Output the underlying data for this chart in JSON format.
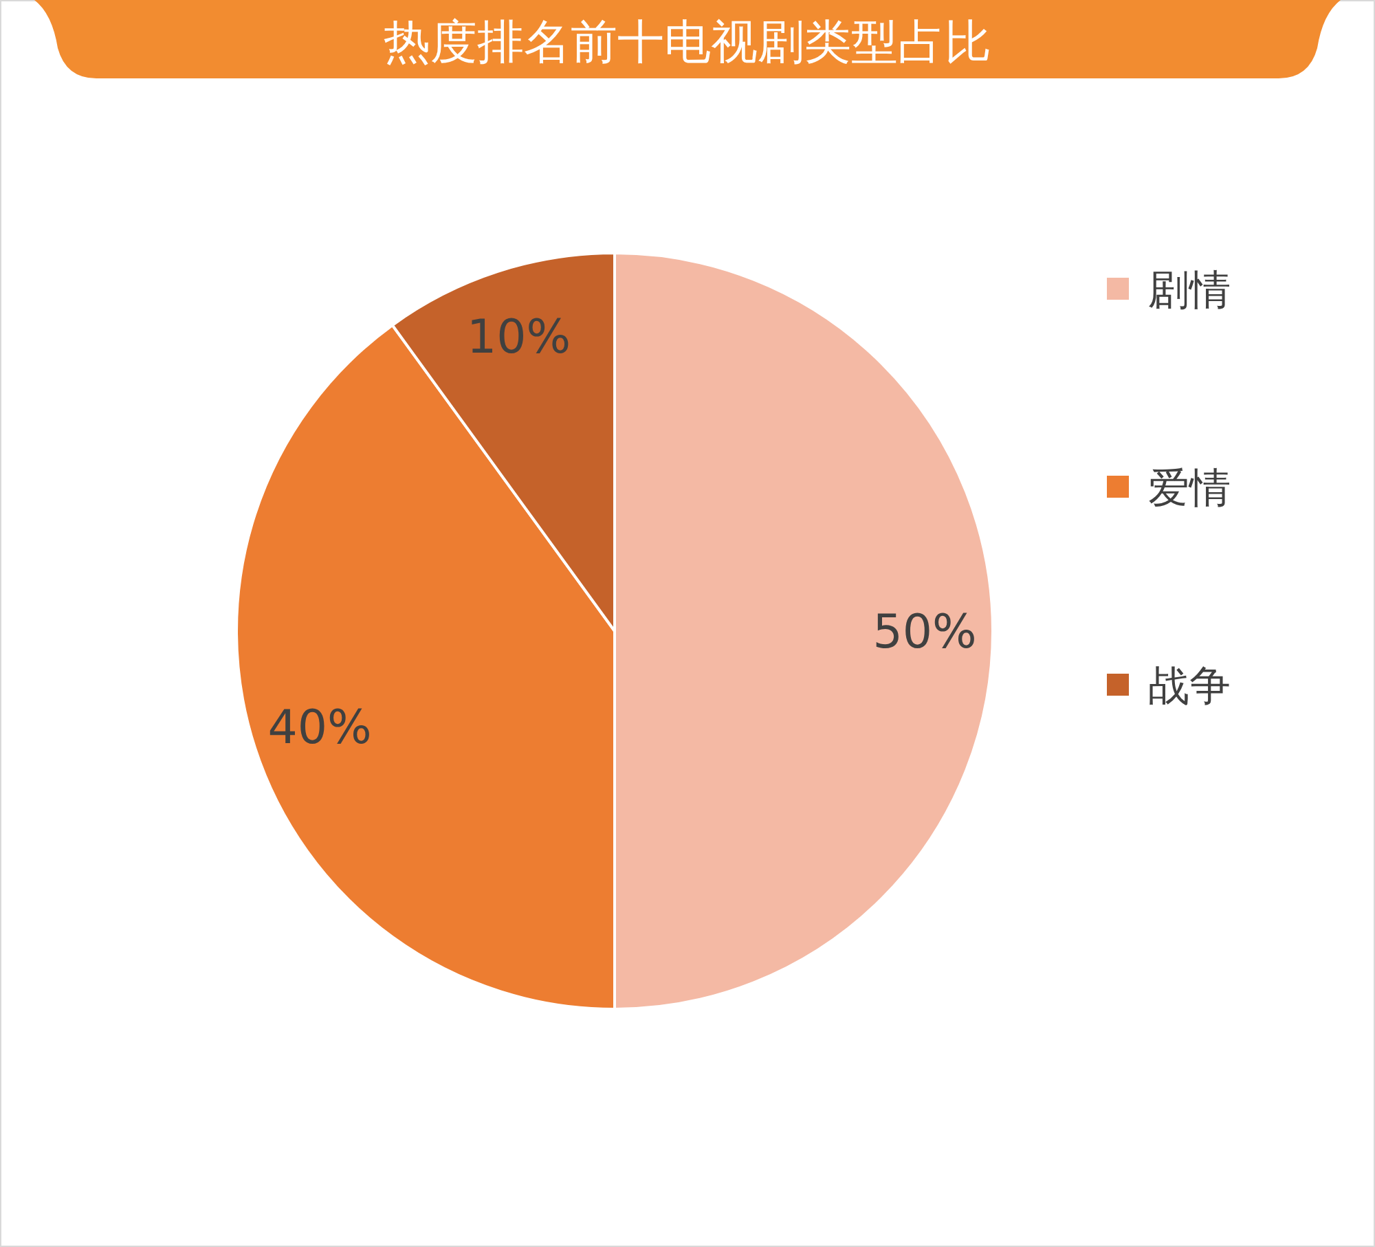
{
  "chart_data": {
    "type": "pie",
    "title": "热度排名前十电视剧类型占比",
    "categories": [
      "剧情",
      "爱情",
      "战争"
    ],
    "values": [
      50,
      40,
      10
    ],
    "colors": [
      "#f4b9a4",
      "#ed7d31",
      "#c5622a"
    ],
    "value_labels": [
      "50%",
      "40%",
      "10%"
    ],
    "legend": "right"
  }
}
